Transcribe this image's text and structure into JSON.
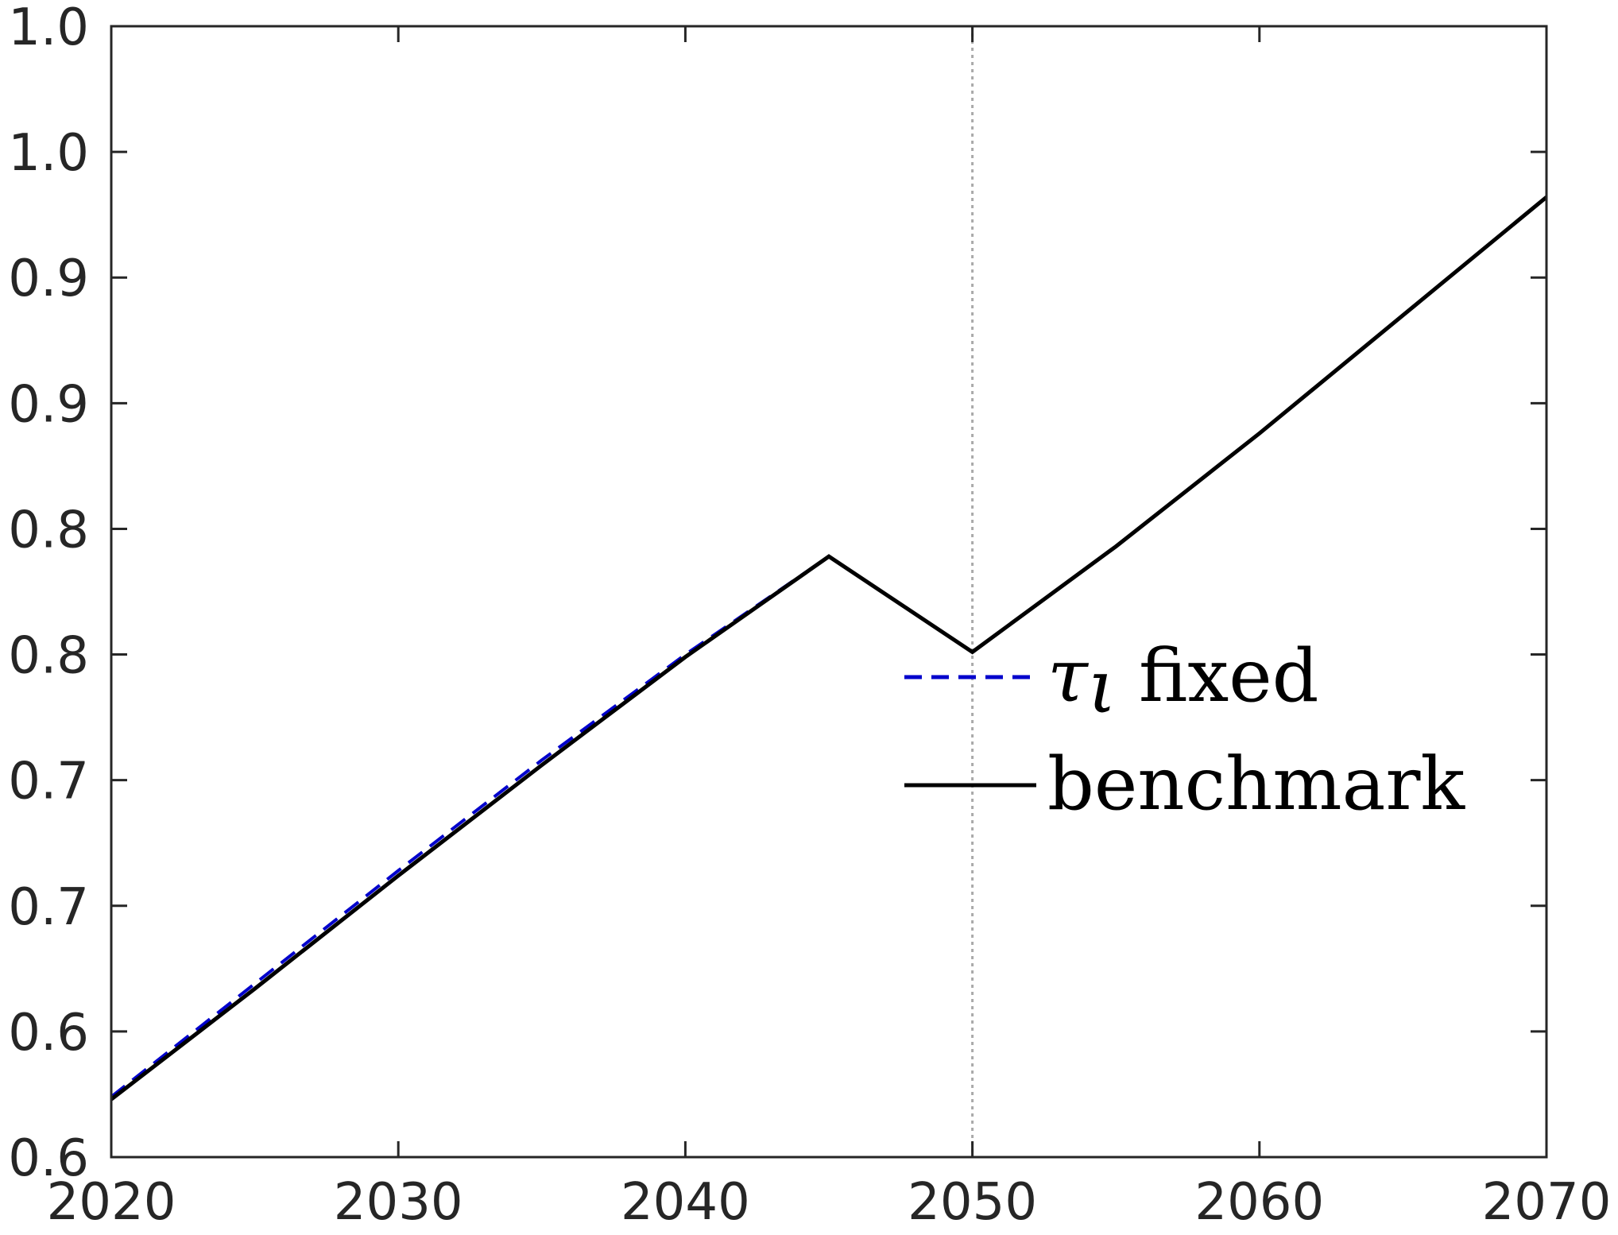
{
  "chart_data": {
    "type": "line",
    "title": "",
    "xlabel": "",
    "ylabel": "",
    "xlim": [
      2020,
      2070
    ],
    "ylim": [
      0.6,
      1.05
    ],
    "x_ticks": [
      2020,
      2030,
      2040,
      2050,
      2060,
      2070
    ],
    "x_tick_labels": [
      "2020",
      "2030",
      "2040",
      "2050",
      "2060",
      "2070"
    ],
    "y_ticks": [
      0.6,
      0.65,
      0.7,
      0.75,
      0.8,
      0.85,
      0.9,
      0.95,
      1.0,
      1.05
    ],
    "y_tick_labels": [
      "0.6",
      "0.6",
      "0.7",
      "0.7",
      "0.8",
      "0.8",
      "0.9",
      "0.9",
      "1.0",
      "1.0"
    ],
    "grid": false,
    "vline": {
      "x": 2050,
      "color": "#aaaaaa",
      "style": "dotted"
    },
    "legend": {
      "placement": "center-right",
      "entries": [
        {
          "series": "tau_fixed",
          "symbol": "τ",
          "subscript": "ι",
          "text": "fixed"
        },
        {
          "series": "benchmark",
          "text": "benchmark"
        }
      ]
    },
    "series": [
      {
        "key": "tau_fixed",
        "name": "τι fixed",
        "color": "#0000cc",
        "style": "dashed",
        "x": [
          2020,
          2025,
          2030,
          2035,
          2040,
          2045,
          2050,
          2055,
          2060,
          2065,
          2070
        ],
        "y": [
          0.624,
          0.669,
          0.714,
          0.758,
          0.8,
          0.839,
          0.801,
          0.843,
          0.888,
          0.935,
          0.982
        ]
      },
      {
        "key": "benchmark",
        "name": "benchmark",
        "color": "#000000",
        "style": "solid",
        "x": [
          2020,
          2025,
          2030,
          2035,
          2040,
          2045,
          2050,
          2055,
          2060,
          2065,
          2070
        ],
        "y": [
          0.623,
          0.667,
          0.712,
          0.756,
          0.799,
          0.839,
          0.801,
          0.843,
          0.888,
          0.935,
          0.982
        ]
      }
    ]
  }
}
